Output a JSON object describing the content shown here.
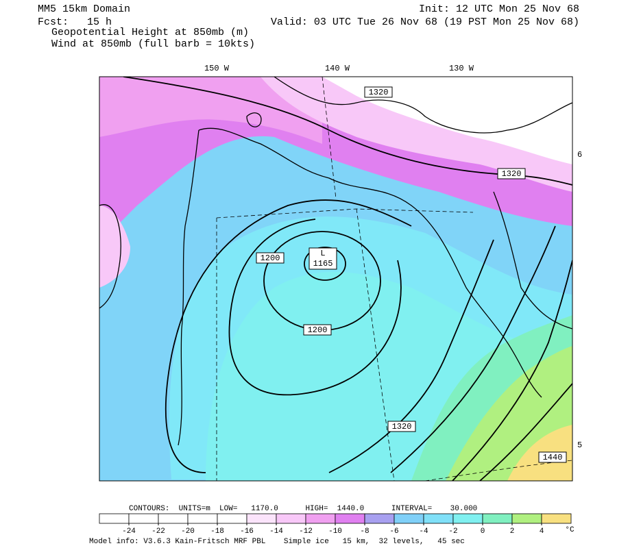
{
  "header": {
    "title": "MM5 15km Domain",
    "forecast": "Fcst:   15 h",
    "init": "Init: 12 UTC Mon 25 Nov 68",
    "valid": "Valid: 03 UTC Tue 26 Nov 68 (19 PST Mon 25 Nov 68)",
    "fields": [
      "Geopotential Height at 850mb (m)",
      "Wind at 850mb (full barb = 10kts)"
    ]
  },
  "map": {
    "longitude_labels": [
      "150 W",
      "140 W",
      "130 W"
    ],
    "latitude_labels": [
      "6",
      "5"
    ],
    "contour_labels": [
      "1320",
      "1320",
      "1200",
      "L",
      "1165",
      "1200",
      "1320",
      "1440"
    ]
  },
  "footer": {
    "contours": "CONTOURS:  UNITS=m  LOW=   1170.0      HIGH=  1440.0      INTERVAL=    30.000",
    "colorbar": {
      "colors": [
        "#ffffff",
        "#ffffff",
        "#ffffff",
        "#ffffff",
        "#ffffff",
        "#fbe4fb",
        "#f8c8f8",
        "#f0a0f0",
        "#e080f0",
        "#a8a0f0",
        "#80d0f8",
        "#80e0f8",
        "#80f0f0",
        "#80f0c0",
        "#b0f080",
        "#f8e080"
      ],
      "ticks": [
        -24,
        -22,
        -20,
        -18,
        -16,
        -14,
        -12,
        -10,
        -8,
        -6,
        -4,
        -2,
        0,
        2,
        4
      ],
      "unit": "°C"
    },
    "model_info": "Model info: V3.6.3 Kain-Fritsch MRF PBL    Simple ice   15 km,  32 levels,   45 sec"
  }
}
